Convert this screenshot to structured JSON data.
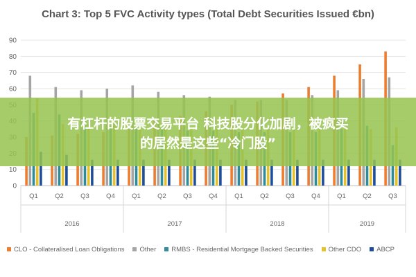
{
  "chart_data": {
    "type": "bar",
    "title": "Chart 3: Top 5 FVC Activity types (Total Debt Securities Issued €bn)",
    "xlabel": "",
    "ylabel": "",
    "ylim": [
      0,
      90
    ],
    "yticks": [
      0,
      10,
      20,
      30,
      40,
      50,
      60,
      70,
      80,
      90
    ],
    "grid": true,
    "legend_position": "bottom",
    "categories": [
      "Q1",
      "Q2",
      "Q3",
      "Q4",
      "Q1",
      "Q2",
      "Q3",
      "Q4",
      "Q1",
      "Q2",
      "Q3",
      "Q4",
      "Q1",
      "Q2",
      "Q3"
    ],
    "groups": [
      {
        "label": "2016",
        "quarters": 4
      },
      {
        "label": "2017",
        "quarters": 4
      },
      {
        "label": "2018",
        "quarters": 4
      },
      {
        "label": "2019",
        "quarters": 3
      }
    ],
    "series": [
      {
        "name": "CLO - Collateralised Loan Obligations",
        "color": "#ed7d31",
        "values": [
          30,
          31,
          32,
          33,
          35,
          40,
          43,
          46,
          50,
          52,
          57,
          61,
          68,
          75,
          83
        ]
      },
      {
        "name": "Other",
        "color": "#a5a5a5",
        "values": [
          68,
          61,
          59,
          60,
          62,
          58,
          56,
          55,
          53,
          53,
          53,
          56,
          59,
          66,
          67
        ]
      },
      {
        "name": "RMBS - Residential Mortgage Backed Securities",
        "color": "#2e8b9a",
        "values": [
          45,
          44,
          40,
          37,
          36,
          35,
          34,
          34,
          33,
          33,
          33,
          33,
          35,
          37,
          25
        ]
      },
      {
        "name": "Other CDO",
        "color": "#e7c12a",
        "values": [
          54,
          38,
          38,
          38,
          35,
          35,
          35,
          35,
          35,
          35,
          35,
          35,
          35,
          35,
          36
        ]
      },
      {
        "name": "ABCP",
        "color": "#1f4e99",
        "values": [
          21,
          19,
          16,
          16,
          16,
          16,
          16,
          16,
          16,
          16,
          16,
          16,
          16,
          16,
          16
        ]
      }
    ]
  },
  "overlay": {
    "line1": "有杠杆的股票交易平台 科技股分化加剧，被疯买",
    "line2": "的居然是这些“冷门股”"
  }
}
